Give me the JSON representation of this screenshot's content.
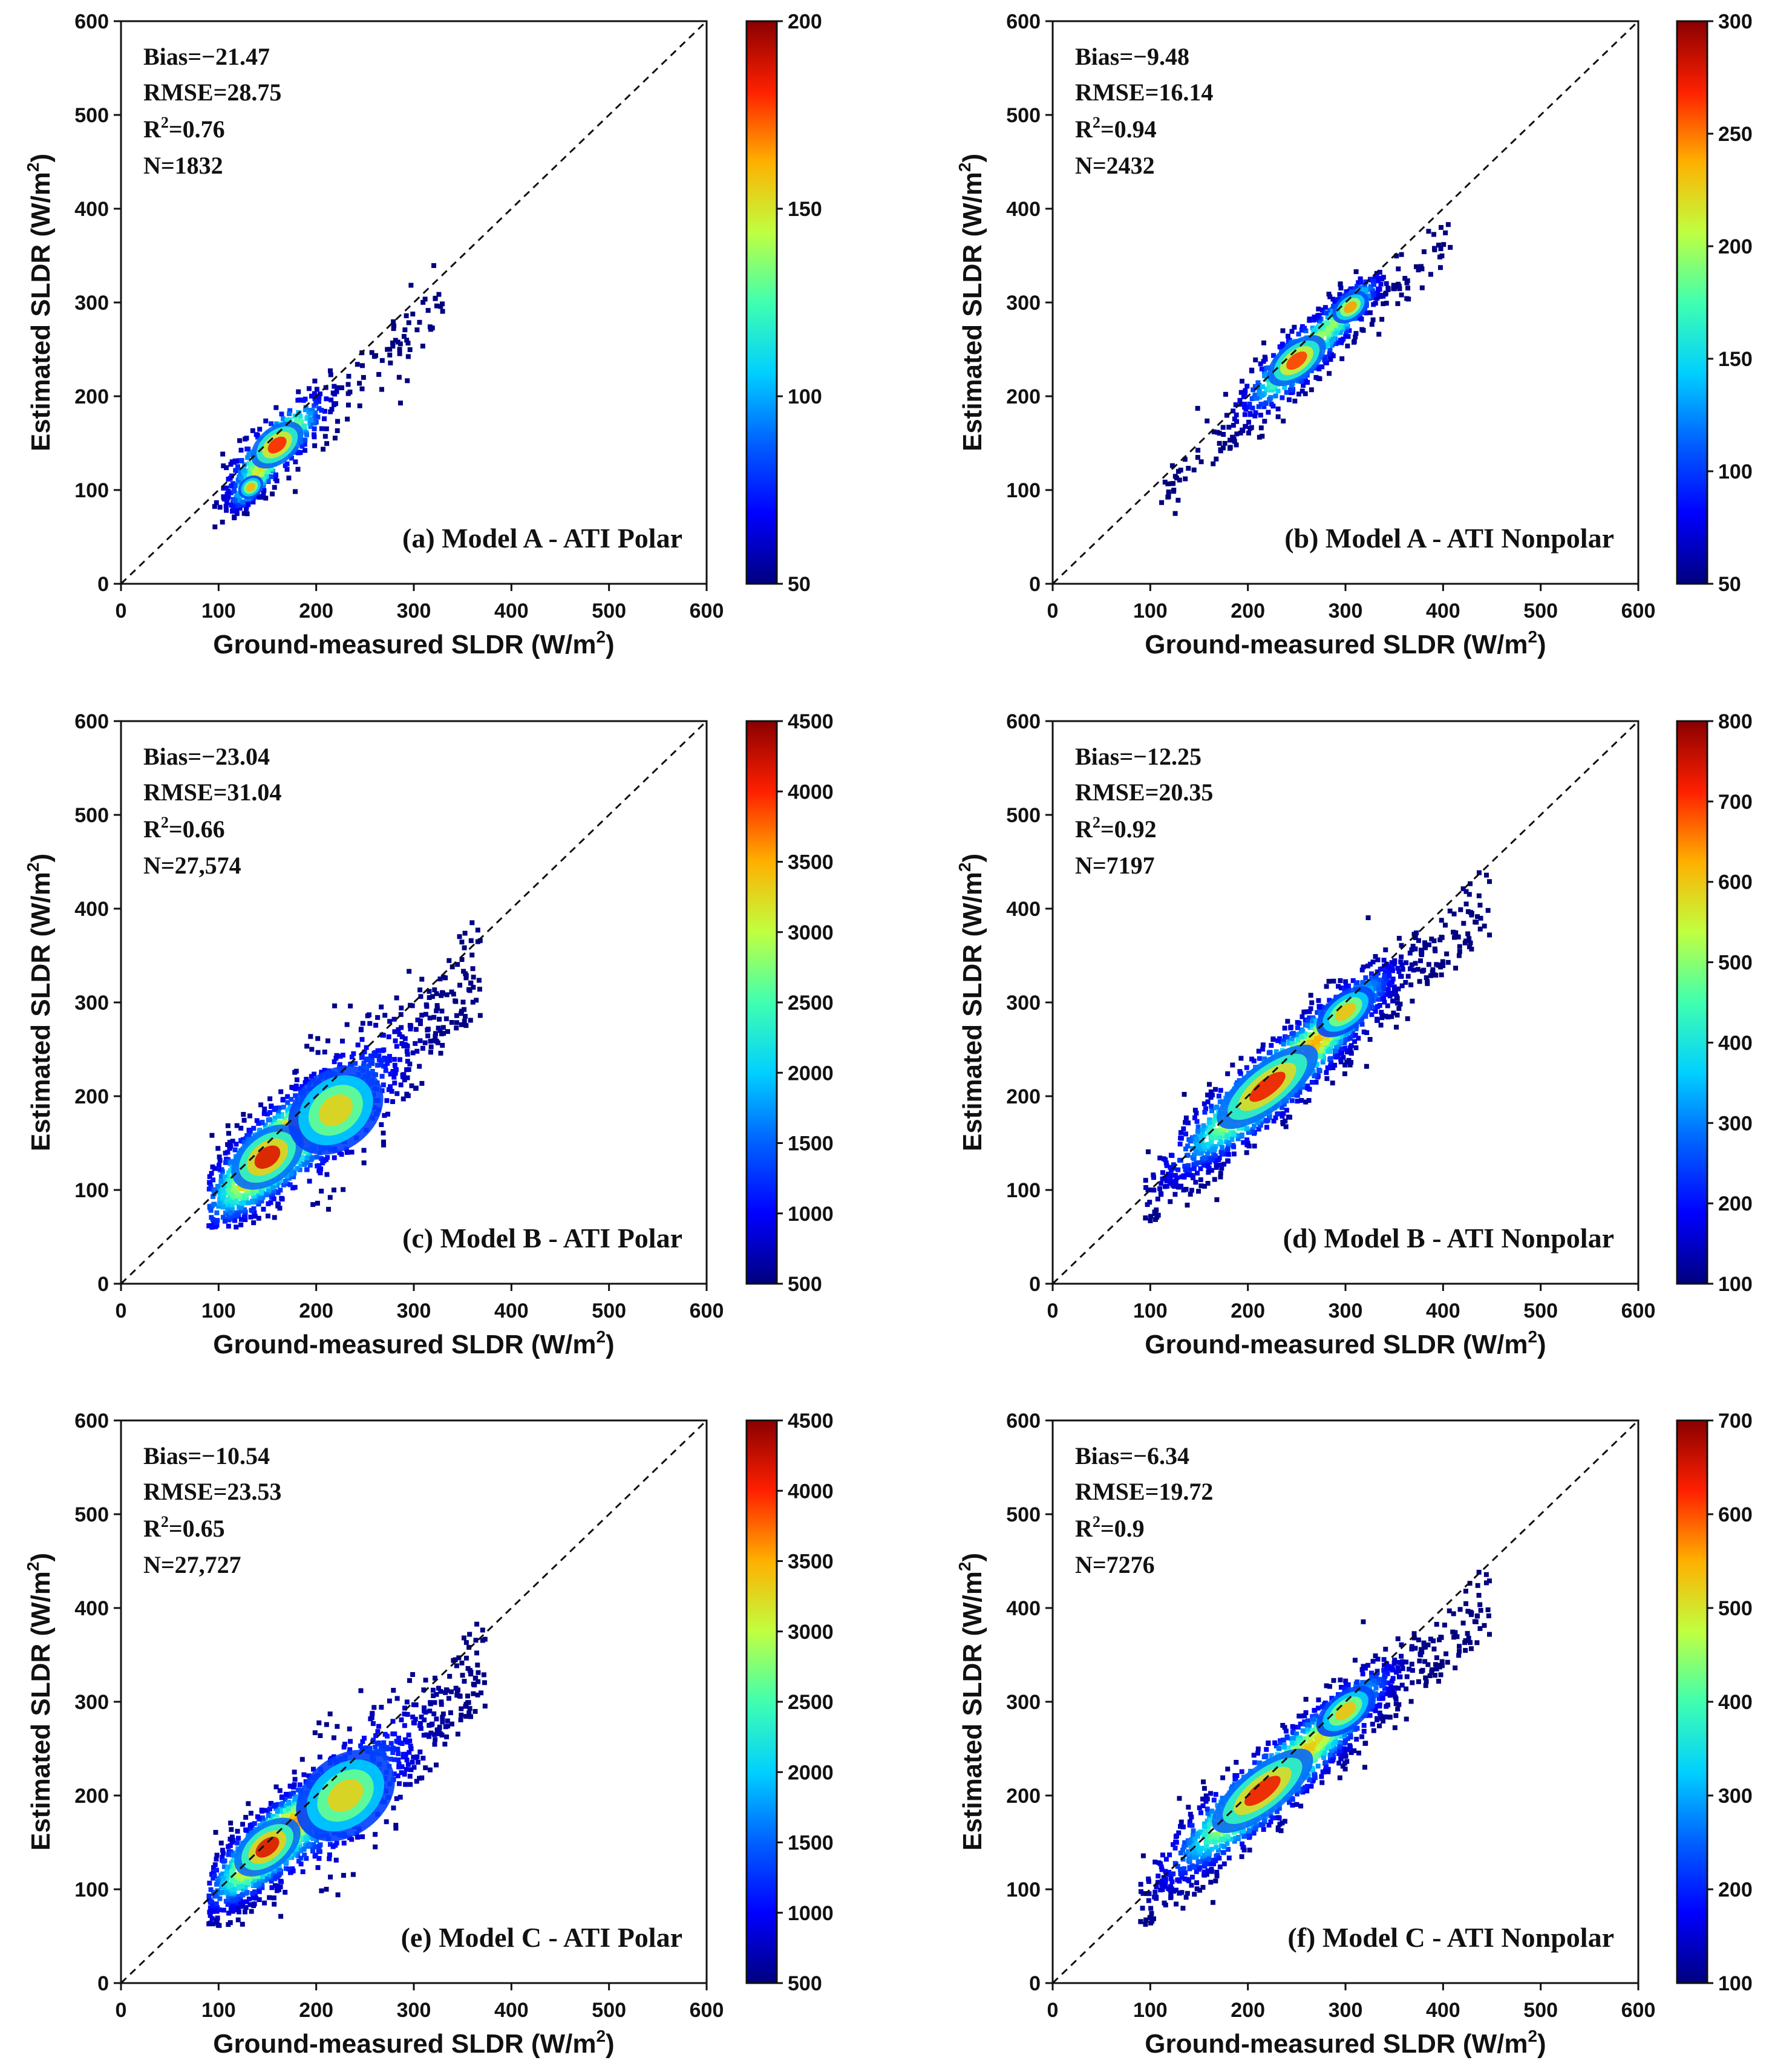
{
  "colors": {
    "jet": [
      "#00007f",
      "#0000ff",
      "#0080ff",
      "#00ffff",
      "#80ff80",
      "#ffff00",
      "#ff8000",
      "#ff0000",
      "#7f0000"
    ],
    "axis": "#111111"
  },
  "chart_data": [
    {
      "type": "scatter",
      "panel": "a",
      "label": "(a) Model A - ATI Polar",
      "xlabel": "Ground-measured SLDR",
      "xlabel_unit": "(W/m",
      "ylabel": "Estimated SLDR",
      "ylabel_unit": "(W/m",
      "unit_sup": "2",
      "unit_close": ")",
      "xlim": [
        0,
        600
      ],
      "ylim": [
        0,
        600
      ],
      "xticks": [
        "0",
        "100",
        "200",
        "300",
        "400",
        "500",
        "600"
      ],
      "yticks": [
        "0",
        "100",
        "200",
        "300",
        "400",
        "500",
        "600"
      ],
      "reference_line": "1:1",
      "stats": {
        "bias": "Bias=−21.47",
        "rmse": "RMSE=28.75",
        "r2_prefix": "R",
        "r2_sup": "2",
        "r2_value": "=0.76",
        "n": "N=1832"
      },
      "colorbar": {
        "min": 50,
        "max": 200,
        "ticks": [
          "50",
          "100",
          "150",
          "200"
        ]
      },
      "density": {
        "n_points": 650,
        "xmin": 95,
        "xmax": 330,
        "clusters": [
          {
            "x": 160,
            "y": 148,
            "sx": 22,
            "sy": 14,
            "w": 0.65
          },
          {
            "x": 133,
            "y": 103,
            "sx": 10,
            "sy": 8,
            "w": 0.35
          }
        ],
        "scatter_x": 30,
        "scatter_y": 22
      }
    },
    {
      "type": "scatter",
      "panel": "b",
      "label": "(b) Model A - ATI Nonpolar",
      "xlabel": "Ground-measured SLDR",
      "xlabel_unit": "(W/m",
      "ylabel": "Estimated SLDR",
      "ylabel_unit": "(W/m",
      "unit_sup": "2",
      "unit_close": ")",
      "xlim": [
        0,
        600
      ],
      "ylim": [
        0,
        600
      ],
      "xticks": [
        "0",
        "100",
        "200",
        "300",
        "400",
        "500",
        "600"
      ],
      "yticks": [
        "0",
        "100",
        "200",
        "300",
        "400",
        "500",
        "600"
      ],
      "reference_line": "1:1",
      "stats": {
        "bias": "Bias=−9.48",
        "rmse": "RMSE=16.14",
        "r2_prefix": "R",
        "r2_sup": "2",
        "r2_value": "=0.94",
        "n": "N=2432"
      },
      "colorbar": {
        "min": 50,
        "max": 300,
        "ticks": [
          "50",
          "100",
          "150",
          "200",
          "250",
          "300"
        ]
      },
      "density": {
        "n_points": 800,
        "xmin": 110,
        "xmax": 410,
        "clusters": [
          {
            "x": 250,
            "y": 238,
            "sx": 25,
            "sy": 14,
            "w": 0.6
          },
          {
            "x": 305,
            "y": 295,
            "sx": 15,
            "sy": 10,
            "w": 0.4
          }
        ],
        "scatter_x": 45,
        "scatter_y": 14
      }
    },
    {
      "type": "scatter",
      "panel": "c",
      "label": "(c) Model B - ATI Polar",
      "xlabel": "Ground-measured SLDR",
      "xlabel_unit": "(W/m",
      "ylabel": "Estimated SLDR",
      "ylabel_unit": "(W/m",
      "unit_sup": "2",
      "unit_close": ")",
      "xlim": [
        0,
        600
      ],
      "ylim": [
        0,
        600
      ],
      "xticks": [
        "0",
        "100",
        "200",
        "300",
        "400",
        "500",
        "600"
      ],
      "yticks": [
        "0",
        "100",
        "200",
        "300",
        "400",
        "500",
        "600"
      ],
      "reference_line": "1:1",
      "stats": {
        "bias": "Bias=−23.04",
        "rmse": "RMSE=31.04",
        "r2_prefix": "R",
        "r2_sup": "2",
        "r2_value": "=0.66",
        "n": "N=27,574"
      },
      "colorbar": {
        "min": 500,
        "max": 4500,
        "ticks": [
          "500",
          "1000",
          "1500",
          "2000",
          "2500",
          "3000",
          "3500",
          "4000",
          "4500"
        ]
      },
      "density": {
        "n_points": 1800,
        "xmin": 90,
        "xmax": 370,
        "clusters": [
          {
            "x": 150,
            "y": 135,
            "sx": 30,
            "sy": 20,
            "w": 0.75
          },
          {
            "x": 220,
            "y": 185,
            "sx": 38,
            "sy": 30,
            "w": 0.25
          }
        ],
        "scatter_x": 40,
        "scatter_y": 28
      }
    },
    {
      "type": "scatter",
      "panel": "d",
      "label": "(d) Model B - ATI Nonpolar",
      "xlabel": "Ground-measured SLDR",
      "xlabel_unit": "(W/m",
      "ylabel": "Estimated SLDR",
      "ylabel_unit": "(W/m",
      "unit_sup": "2",
      "unit_close": ")",
      "xlim": [
        0,
        600
      ],
      "ylim": [
        0,
        600
      ],
      "xticks": [
        "0",
        "100",
        "200",
        "300",
        "400",
        "500",
        "600"
      ],
      "yticks": [
        "0",
        "100",
        "200",
        "300",
        "400",
        "500",
        "600"
      ],
      "reference_line": "1:1",
      "stats": {
        "bias": "Bias=−12.25",
        "rmse": "RMSE=20.35",
        "r2_prefix": "R",
        "r2_sup": "2",
        "r2_value": "=0.92",
        "n": "N=7197"
      },
      "colorbar": {
        "min": 100,
        "max": 800,
        "ticks": [
          "100",
          "200",
          "300",
          "400",
          "500",
          "600",
          "700",
          "800"
        ]
      },
      "density": {
        "n_points": 1700,
        "xmin": 95,
        "xmax": 450,
        "clusters": [
          {
            "x": 220,
            "y": 210,
            "sx": 45,
            "sy": 18,
            "w": 0.7
          },
          {
            "x": 300,
            "y": 290,
            "sx": 25,
            "sy": 14,
            "w": 0.3
          }
        ],
        "scatter_x": 55,
        "scatter_y": 20
      }
    },
    {
      "type": "scatter",
      "panel": "e",
      "label": "(e) Model C - ATI Polar",
      "xlabel": "Ground-measured SLDR",
      "xlabel_unit": "(W/m",
      "ylabel": "Estimated SLDR",
      "ylabel_unit": "(W/m",
      "unit_sup": "2",
      "unit_close": ")",
      "xlim": [
        0,
        600
      ],
      "ylim": [
        0,
        600
      ],
      "xticks": [
        "0",
        "100",
        "200",
        "300",
        "400",
        "500",
        "600"
      ],
      "yticks": [
        "0",
        "100",
        "200",
        "300",
        "400",
        "500",
        "600"
      ],
      "reference_line": "1:1",
      "stats": {
        "bias": "Bias=−10.54",
        "rmse": "RMSE=23.53",
        "r2_prefix": "R",
        "r2_sup": "2",
        "r2_value": "=0.65",
        "n": "N=27,727"
      },
      "colorbar": {
        "min": 500,
        "max": 4500,
        "ticks": [
          "500",
          "1000",
          "1500",
          "2000",
          "2500",
          "3000",
          "3500",
          "4000",
          "4500"
        ]
      },
      "density": {
        "n_points": 1800,
        "xmin": 90,
        "xmax": 375,
        "clusters": [
          {
            "x": 150,
            "y": 145,
            "sx": 28,
            "sy": 17,
            "w": 0.75
          },
          {
            "x": 230,
            "y": 200,
            "sx": 40,
            "sy": 30,
            "w": 0.25
          }
        ],
        "scatter_x": 40,
        "scatter_y": 25
      }
    },
    {
      "type": "scatter",
      "panel": "f",
      "label": "(f) Model C - ATI Nonpolar",
      "xlabel": "Ground-measured SLDR",
      "xlabel_unit": "(W/m",
      "ylabel": "Estimated SLDR",
      "ylabel_unit": "(W/m",
      "unit_sup": "2",
      "unit_close": ")",
      "xlim": [
        0,
        600
      ],
      "ylim": [
        0,
        600
      ],
      "xticks": [
        "0",
        "100",
        "200",
        "300",
        "400",
        "500",
        "600"
      ],
      "yticks": [
        "0",
        "100",
        "200",
        "300",
        "400",
        "500",
        "600"
      ],
      "reference_line": "1:1",
      "stats": {
        "bias": "Bias=−6.34",
        "rmse": "RMSE=19.72",
        "r2_prefix": "R",
        "r2_sup": "2",
        "r2_value": "=0.9",
        "n": "N=7276"
      },
      "colorbar": {
        "min": 100,
        "max": 700,
        "ticks": [
          "100",
          "200",
          "300",
          "400",
          "500",
          "600",
          "700"
        ]
      },
      "density": {
        "n_points": 1700,
        "xmin": 90,
        "xmax": 450,
        "clusters": [
          {
            "x": 215,
            "y": 205,
            "sx": 45,
            "sy": 18,
            "w": 0.7
          },
          {
            "x": 300,
            "y": 290,
            "sx": 25,
            "sy": 14,
            "w": 0.3
          }
        ],
        "scatter_x": 55,
        "scatter_y": 20
      }
    }
  ]
}
